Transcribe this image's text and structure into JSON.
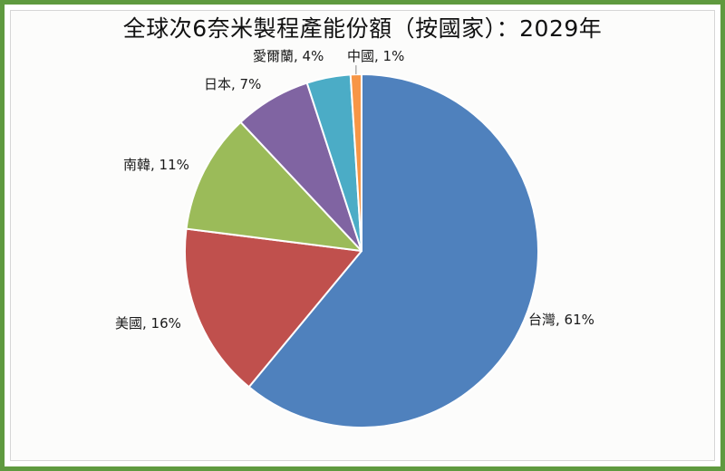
{
  "chart_data": {
    "type": "pie",
    "title": "全球次6奈米製程產能份額（按國家）：2029年",
    "categories": [
      "台灣",
      "美國",
      "南韓",
      "日本",
      "愛爾蘭",
      "中國"
    ],
    "values": [
      61,
      16,
      11,
      7,
      4,
      1
    ],
    "unit": "%",
    "colors": [
      "#4f81bd",
      "#c0504d",
      "#9bbb59",
      "#8064a2",
      "#4bacc6",
      "#f79646"
    ],
    "start_angle": "12 o'clock",
    "direction": "clockwise",
    "legend": "none (data labels: category, percentage)",
    "labels": [
      {
        "text": "台灣, 61%"
      },
      {
        "text": "美國, 16%"
      },
      {
        "text": "南韓, 11%"
      },
      {
        "text": "日本, 7%"
      },
      {
        "text": "愛爾蘭, 4%"
      },
      {
        "text": "中國, 1%"
      }
    ]
  },
  "style": {
    "border_color": "#5f9a3f"
  }
}
